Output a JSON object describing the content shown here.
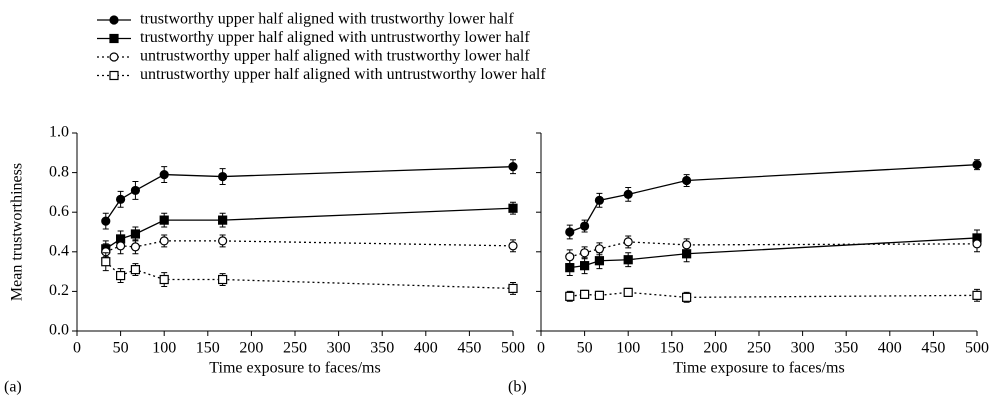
{
  "chart_data": [
    {
      "type": "line",
      "panel_label": "(a)",
      "xlabel": "Time exposure to faces/ms",
      "ylabel": "Mean trustworthiness",
      "x": [
        33,
        50,
        67,
        100,
        167,
        500
      ],
      "xlim": [
        0,
        500
      ],
      "xticks": [
        0,
        50,
        100,
        150,
        200,
        250,
        300,
        350,
        400,
        450,
        500
      ],
      "ylim": [
        0,
        1
      ],
      "yticks": [
        {
          "value": 0,
          "label": "0.0"
        },
        0.2,
        0.4,
        0.6,
        0.8,
        {
          "value": 1,
          "label": "1.0"
        }
      ],
      "show_ytick_labels": true,
      "series": [
        {
          "name": "trustworthy upper half aligned with trustworthy lower half",
          "color": "#000000",
          "marker": "circle",
          "filled": true,
          "linestyle": "solid",
          "values": [
            0.555,
            0.665,
            0.71,
            0.79,
            0.78,
            0.83
          ],
          "errors": [
            0.04,
            0.04,
            0.045,
            0.04,
            0.04,
            0.035
          ]
        },
        {
          "name": "trustworthy upper half aligned with untrustworthy lower half",
          "color": "#000000",
          "marker": "square",
          "filled": true,
          "linestyle": "solid",
          "values": [
            0.415,
            0.465,
            0.49,
            0.56,
            0.56,
            0.62
          ],
          "errors": [
            0.04,
            0.04,
            0.035,
            0.035,
            0.035,
            0.03
          ]
        },
        {
          "name": "untrustworthy upper half aligned with trustworthy lower half",
          "color": "#000000",
          "marker": "circle",
          "filled": false,
          "linestyle": "dotted",
          "values": [
            0.4,
            0.43,
            0.425,
            0.455,
            0.455,
            0.43
          ],
          "errors": [
            0.04,
            0.04,
            0.035,
            0.03,
            0.03,
            0.03
          ]
        },
        {
          "name": "untrustworthy upper half aligned with untrustworthy lower half",
          "color": "#000000",
          "marker": "square",
          "filled": false,
          "linestyle": "dotted",
          "values": [
            0.35,
            0.28,
            0.31,
            0.26,
            0.26,
            0.215
          ],
          "errors": [
            0.045,
            0.035,
            0.03,
            0.035,
            0.03,
            0.03
          ]
        }
      ]
    },
    {
      "type": "line",
      "panel_label": "(b)",
      "xlabel": "Time exposure to faces/ms",
      "x": [
        33,
        50,
        67,
        100,
        167,
        500
      ],
      "xlim": [
        0,
        500
      ],
      "xticks": [
        0,
        50,
        100,
        150,
        200,
        250,
        300,
        350,
        400,
        450,
        500
      ],
      "ylim": [
        0,
        1
      ],
      "yticks": [
        0,
        0.2,
        0.4,
        0.6,
        0.8,
        1
      ],
      "show_ytick_labels": false,
      "series": [
        {
          "color": "#000000",
          "marker": "circle",
          "filled": true,
          "linestyle": "solid",
          "values": [
            0.5,
            0.53,
            0.66,
            0.69,
            0.76,
            0.84
          ],
          "errors": [
            0.035,
            0.03,
            0.035,
            0.035,
            0.03,
            0.025
          ]
        },
        {
          "color": "#000000",
          "marker": "square",
          "filled": true,
          "linestyle": "solid",
          "values": [
            0.32,
            0.33,
            0.355,
            0.36,
            0.39,
            0.47
          ],
          "errors": [
            0.04,
            0.04,
            0.04,
            0.035,
            0.04,
            0.04
          ]
        },
        {
          "color": "#000000",
          "marker": "circle",
          "filled": false,
          "linestyle": "dotted",
          "values": [
            0.375,
            0.395,
            0.415,
            0.45,
            0.435,
            0.44
          ],
          "errors": [
            0.035,
            0.03,
            0.03,
            0.03,
            0.03,
            0.04
          ]
        },
        {
          "color": "#000000",
          "marker": "square",
          "filled": false,
          "linestyle": "dotted",
          "values": [
            0.175,
            0.185,
            0.18,
            0.195,
            0.17,
            0.18
          ],
          "errors": [
            0.025,
            0.02,
            0.02,
            0.02,
            0.025,
            0.03
          ]
        }
      ]
    }
  ]
}
